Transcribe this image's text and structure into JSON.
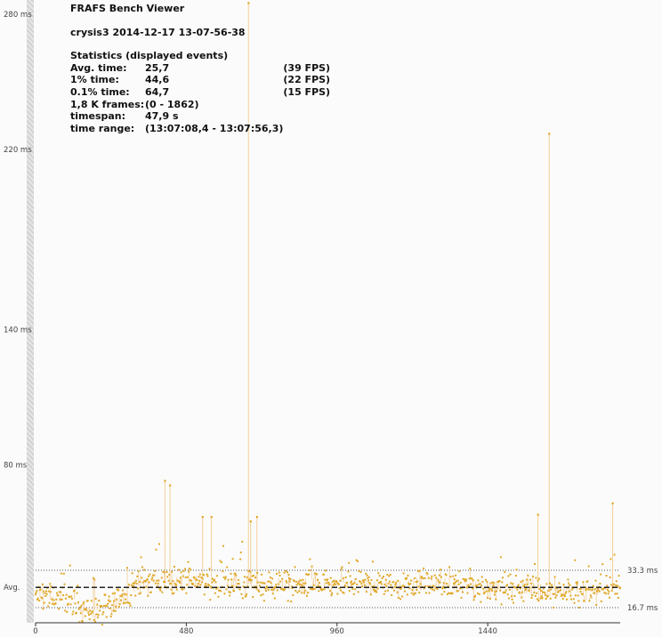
{
  "app_title": "FRAFS Bench Viewer",
  "run_name": "crysis3 2014-12-17 13-07-56-38",
  "stats": {
    "heading": "Statistics (displayed events)",
    "rows": [
      {
        "label": "Avg. time:",
        "value": "25,7",
        "extra": "(39 FPS)"
      },
      {
        "label": "1% time:",
        "value": "44,6",
        "extra": "(22 FPS)"
      },
      {
        "label": "0.1% time:",
        "value": "64,7",
        "extra": "(15 FPS)"
      },
      {
        "label": "1,8 K frames:",
        "value": "(0 - 1862)",
        "extra": ""
      },
      {
        "label": "timespan:",
        "value": "47,9 s",
        "extra": ""
      },
      {
        "label": "time range:",
        "value": "(13:07:08,4 - 13:07:56,3)",
        "extra": ""
      }
    ]
  },
  "colors": {
    "points": "#e0a92a",
    "spikes": "#f3cf9a",
    "avg_line": "#222222"
  },
  "chart_data": {
    "type": "scatter",
    "xlim": [
      0,
      1862
    ],
    "ylim": [
      10,
      280
    ],
    "y_ticks": [
      {
        "value": 280,
        "label": "280 ms"
      },
      {
        "value": 220,
        "label": "220 ms"
      },
      {
        "value": 140,
        "label": "140 ms"
      },
      {
        "value": 80,
        "label": "80 ms"
      }
    ],
    "x_ticks": [
      {
        "value": 0,
        "label": "0"
      },
      {
        "value": 480,
        "label": "480"
      },
      {
        "value": 960,
        "label": "960"
      },
      {
        "value": 1440,
        "label": "1440"
      }
    ],
    "avg_line": {
      "value": 25.7,
      "label": "Avg."
    },
    "reference_lines": [
      {
        "value": 33.3,
        "label": "33.3 ms"
      },
      {
        "value": 16.7,
        "label": "16.7 ms"
      }
    ],
    "base_profile": [
      [
        0,
        22
      ],
      [
        100,
        21
      ],
      [
        160,
        15
      ],
      [
        230,
        15
      ],
      [
        300,
        24
      ],
      [
        330,
        29
      ],
      [
        460,
        28
      ],
      [
        560,
        28
      ],
      [
        700,
        27
      ],
      [
        1000,
        27
      ],
      [
        1300,
        27
      ],
      [
        1600,
        25
      ],
      [
        1740,
        23
      ],
      [
        1862,
        25
      ]
    ],
    "jitter": 6,
    "spikes": [
      {
        "frame": 678,
        "value": 285
      },
      {
        "frame": 1636,
        "value": 227
      },
      {
        "frame": 412,
        "value": 73
      },
      {
        "frame": 428,
        "value": 71
      },
      {
        "frame": 532,
        "value": 57
      },
      {
        "frame": 560,
        "value": 57
      },
      {
        "frame": 685,
        "value": 55
      },
      {
        "frame": 705,
        "value": 57
      },
      {
        "frame": 1600,
        "value": 58
      },
      {
        "frame": 1838,
        "value": 63
      }
    ]
  }
}
